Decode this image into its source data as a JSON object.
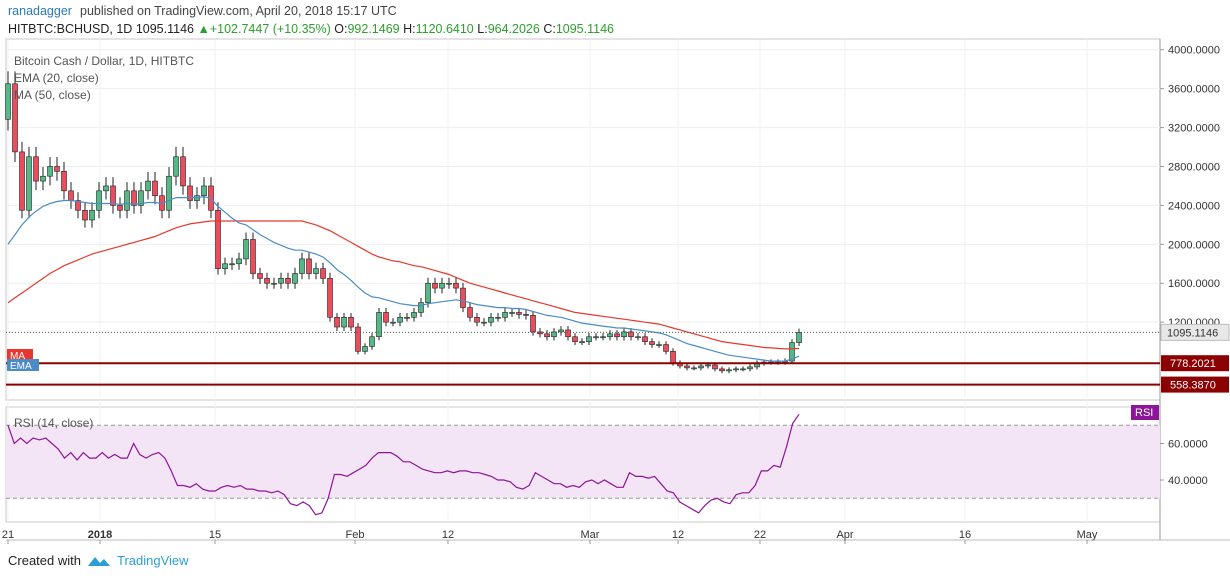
{
  "header": {
    "author": "ranadagger",
    "published_text": "published on TradingView.com, April 20, 2018 15:17 UTC"
  },
  "symbol_line": {
    "symbol": "HITBTC:BCHUSD, 1D",
    "last": "1095.1146",
    "change_arrow": "▲",
    "change": "+102.7447 (+10.35%)",
    "o_label": "O:",
    "o_value": "992.1469",
    "h_label": "H:",
    "h_value": "1120.6410",
    "l_label": "L:",
    "l_value": "964.2026",
    "c_label": "C:",
    "c_value": "1095.1146"
  },
  "legend": {
    "title": "Bitcoin Cash / Dollar, 1D, HITBTC",
    "ema": "EMA (20, close)",
    "ma": "MA (50, close)",
    "rsi": "RSI (14, close)"
  },
  "footer": {
    "created_with": "Created with",
    "brand": "TradingView"
  },
  "colors": {
    "up": "#53b987",
    "down": "#eb4d5c",
    "ma": "#e8372c",
    "ema": "#4b8cc6",
    "rsi": "#8e1599",
    "rsi_band": "#f3e5f5",
    "level_line": "#8b0000",
    "label_bg": "#8b0000"
  },
  "chart_data": [
    {
      "type": "candlestick",
      "title": "Bitcoin Cash / Dollar, 1D, HITBTC",
      "ylim": [
        400,
        4100
      ],
      "y_ticks": [
        "4000.0000",
        "3600.0000",
        "3200.0000",
        "2800.0000",
        "2400.0000",
        "2000.0000",
        "1600.0000",
        "1200.0000"
      ],
      "x_tick_labels": [
        "21",
        "2018",
        "15",
        "Feb",
        "12",
        "Mar",
        "12",
        "22",
        "Apr",
        "16",
        "May"
      ],
      "last_price_label": "1095.1146",
      "horizontal_levels": [
        {
          "value": 778.2021,
          "label": "778.2021"
        },
        {
          "value": 558.387,
          "label": "558.3870"
        }
      ],
      "series_labels": {
        "ma": "MA",
        "ema": "EMA"
      },
      "closes": [
        3650,
        2950,
        2350,
        2900,
        2650,
        2700,
        2800,
        2750,
        2550,
        2450,
        2350,
        2250,
        2350,
        2550,
        2600,
        2400,
        2350,
        2550,
        2400,
        2550,
        2650,
        2500,
        2350,
        2700,
        2900,
        2600,
        2450,
        2500,
        2600,
        2350,
        1750,
        1800,
        1800,
        1850,
        2050,
        1700,
        1650,
        1600,
        1600,
        1650,
        1600,
        1700,
        1850,
        1700,
        1750,
        1650,
        1250,
        1150,
        1250,
        1150,
        900,
        950,
        1050,
        1300,
        1200,
        1200,
        1250,
        1250,
        1300,
        1400,
        1600,
        1550,
        1600,
        1600,
        1550,
        1350,
        1250,
        1200,
        1200,
        1250,
        1250,
        1300,
        1300,
        1280,
        1270,
        1100,
        1080,
        1050,
        1100,
        1120,
        1050,
        1000,
        1000,
        1050,
        1050,
        1050,
        1080,
        1050,
        1100,
        1050,
        1050,
        1000,
        970,
        970,
        900,
        780,
        750,
        730,
        730,
        750,
        760,
        720,
        700,
        710,
        720,
        720,
        740,
        780,
        790,
        790,
        790,
        800,
        990,
        1095
      ],
      "ema20": [
        2000,
        2100,
        2200,
        2280,
        2340,
        2390,
        2420,
        2440,
        2450,
        2450,
        2440,
        2430,
        2420,
        2420,
        2420,
        2420,
        2410,
        2420,
        2410,
        2420,
        2430,
        2430,
        2420,
        2450,
        2480,
        2480,
        2480,
        2480,
        2490,
        2470,
        2390,
        2330,
        2270,
        2220,
        2200,
        2150,
        2100,
        2060,
        2020,
        1990,
        1960,
        1940,
        1940,
        1920,
        1900,
        1870,
        1810,
        1740,
        1690,
        1630,
        1560,
        1500,
        1460,
        1450,
        1430,
        1410,
        1390,
        1380,
        1370,
        1370,
        1390,
        1400,
        1410,
        1420,
        1430,
        1420,
        1400,
        1380,
        1370,
        1360,
        1350,
        1350,
        1340,
        1340,
        1330,
        1310,
        1290,
        1270,
        1260,
        1250,
        1230,
        1210,
        1190,
        1180,
        1170,
        1160,
        1150,
        1140,
        1140,
        1130,
        1120,
        1110,
        1100,
        1090,
        1070,
        1040,
        1010,
        980,
        960,
        940,
        920,
        900,
        880,
        860,
        850,
        840,
        830,
        820,
        810,
        800,
        800,
        800,
        820,
        850
      ],
      "ma50": [
        1400,
        1450,
        1500,
        1550,
        1600,
        1650,
        1700,
        1740,
        1780,
        1810,
        1840,
        1870,
        1900,
        1920,
        1940,
        1960,
        1980,
        2000,
        2020,
        2040,
        2060,
        2080,
        2110,
        2140,
        2170,
        2190,
        2210,
        2220,
        2230,
        2240,
        2240,
        2240,
        2240,
        2240,
        2240,
        2240,
        2240,
        2240,
        2240,
        2240,
        2240,
        2240,
        2240,
        2220,
        2200,
        2170,
        2140,
        2100,
        2060,
        2020,
        1980,
        1940,
        1900,
        1870,
        1850,
        1830,
        1820,
        1800,
        1780,
        1770,
        1750,
        1730,
        1710,
        1690,
        1660,
        1630,
        1600,
        1580,
        1560,
        1540,
        1520,
        1500,
        1480,
        1460,
        1440,
        1420,
        1400,
        1380,
        1360,
        1340,
        1320,
        1300,
        1290,
        1280,
        1270,
        1260,
        1250,
        1240,
        1230,
        1220,
        1210,
        1200,
        1190,
        1180,
        1160,
        1140,
        1120,
        1100,
        1080,
        1060,
        1040,
        1020,
        1000,
        990,
        980,
        970,
        960,
        950,
        940,
        935,
        930,
        925,
        925,
        930
      ]
    },
    {
      "type": "line",
      "title": "RSI (14, close)",
      "ylim": [
        17,
        80
      ],
      "y_ticks": [
        "60.0000",
        "40.0000"
      ],
      "band": [
        30,
        70
      ],
      "last_label": "RSI",
      "values": [
        70,
        60,
        63,
        60,
        63,
        62,
        63,
        60,
        57,
        52,
        55,
        51,
        55,
        52,
        52,
        55,
        52,
        54,
        52,
        52,
        60,
        54,
        52,
        54,
        55,
        52,
        45,
        37,
        37,
        36,
        38,
        35,
        34,
        34,
        36,
        37,
        36,
        37,
        35,
        35,
        34,
        34,
        33,
        34,
        32,
        27,
        26,
        28,
        26,
        21,
        22,
        30,
        43,
        43,
        42,
        44,
        46,
        48,
        52,
        55,
        55,
        55,
        53,
        50,
        50,
        48,
        46,
        45,
        44,
        44,
        45,
        44,
        45,
        45,
        44,
        44,
        43,
        42,
        40,
        40,
        39,
        36,
        35,
        37,
        44,
        42,
        40,
        38,
        38,
        36,
        37,
        36,
        39,
        40,
        38,
        40,
        38,
        36,
        36,
        44,
        42,
        42,
        41,
        42,
        38,
        34,
        33,
        28,
        26,
        24,
        22,
        26,
        29,
        30,
        28,
        27,
        32,
        33,
        33,
        37,
        45,
        45,
        48,
        47,
        58,
        71,
        76
      ]
    }
  ]
}
